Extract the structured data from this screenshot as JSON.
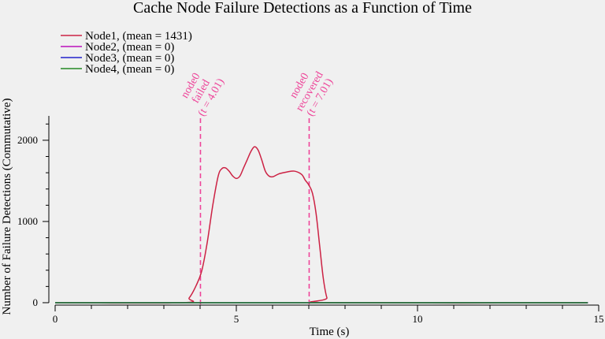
{
  "chart_data": {
    "type": "line",
    "title": "Cache Node Failure Detections as a Function of Time",
    "xlabel": "Time (s)",
    "ylabel": "Number of Failure Detections (Commutative)",
    "xlim": [
      0,
      15
    ],
    "ylim": [
      -10,
      2300
    ],
    "x_ticks": [
      0,
      5,
      10,
      15
    ],
    "x_minor_step": 1,
    "y_ticks": [
      0,
      1000,
      2000
    ],
    "y_minor_step": 200,
    "grid": false,
    "legend_position": "top-left",
    "series": [
      {
        "name": "Node1, (mean = 1431)",
        "color": "#cc2244",
        "x": [
          0,
          3.5,
          3.7,
          3.9,
          4.05,
          4.2,
          4.35,
          4.5,
          4.6,
          4.7,
          4.8,
          4.9,
          5.0,
          5.1,
          5.2,
          5.3,
          5.4,
          5.5,
          5.6,
          5.7,
          5.8,
          5.9,
          6.0,
          6.1,
          6.2,
          6.4,
          6.6,
          6.8,
          6.9,
          7.0,
          7.1,
          7.2,
          7.3,
          7.4,
          7.5,
          7.6,
          14.7
        ],
        "y": [
          0,
          0,
          60,
          220,
          400,
          750,
          1200,
          1560,
          1650,
          1660,
          1620,
          1560,
          1530,
          1560,
          1660,
          1760,
          1860,
          1920,
          1880,
          1760,
          1620,
          1560,
          1550,
          1570,
          1590,
          1610,
          1620,
          1580,
          1510,
          1450,
          1350,
          1100,
          700,
          300,
          60,
          0,
          0
        ]
      },
      {
        "name": "Node2, (mean = 0)",
        "color": "#bb11bb",
        "x": [
          0,
          14.7
        ],
        "y": [
          0,
          0
        ]
      },
      {
        "name": "Node3, (mean = 0)",
        "color": "#2222cc",
        "x": [
          0,
          14.7
        ],
        "y": [
          0,
          0
        ]
      },
      {
        "name": "Node4, (mean = 0)",
        "color": "#228822",
        "x": [
          0,
          14.7
        ],
        "y": [
          0,
          0
        ]
      }
    ],
    "annotations": [
      {
        "x": 4.01,
        "lines": [
          "node0",
          "failed",
          "(t = 4.01)"
        ],
        "color": "#ee4499"
      },
      {
        "x": 7.01,
        "lines": [
          "node0",
          "recovered",
          "(t = 7.01)"
        ],
        "color": "#ee4499"
      }
    ]
  }
}
